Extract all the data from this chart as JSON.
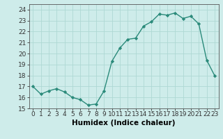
{
  "x": [
    0,
    1,
    2,
    3,
    4,
    5,
    6,
    7,
    8,
    9,
    10,
    11,
    12,
    13,
    14,
    15,
    16,
    17,
    18,
    19,
    20,
    21,
    22,
    23
  ],
  "y": [
    17.0,
    16.3,
    16.6,
    16.8,
    16.5,
    16.0,
    15.8,
    15.3,
    15.4,
    16.6,
    19.3,
    20.5,
    21.3,
    21.4,
    22.5,
    22.9,
    23.6,
    23.5,
    23.7,
    23.2,
    23.4,
    22.7,
    19.4,
    18.0
  ],
  "line_color": "#2a8a7a",
  "marker": "D",
  "marker_size": 2.2,
  "bg_color": "#ceecea",
  "grid_color": "#aed8d4",
  "xlabel": "Humidex (Indice chaleur)",
  "xlim": [
    -0.5,
    23.5
  ],
  "ylim": [
    15,
    24.5
  ],
  "yticks": [
    15,
    16,
    17,
    18,
    19,
    20,
    21,
    22,
    23,
    24
  ],
  "xticks": [
    0,
    1,
    2,
    3,
    4,
    5,
    6,
    7,
    8,
    9,
    10,
    11,
    12,
    13,
    14,
    15,
    16,
    17,
    18,
    19,
    20,
    21,
    22,
    23
  ],
  "tick_fontsize": 6.5,
  "xlabel_fontsize": 7.5,
  "line_width": 1.0
}
